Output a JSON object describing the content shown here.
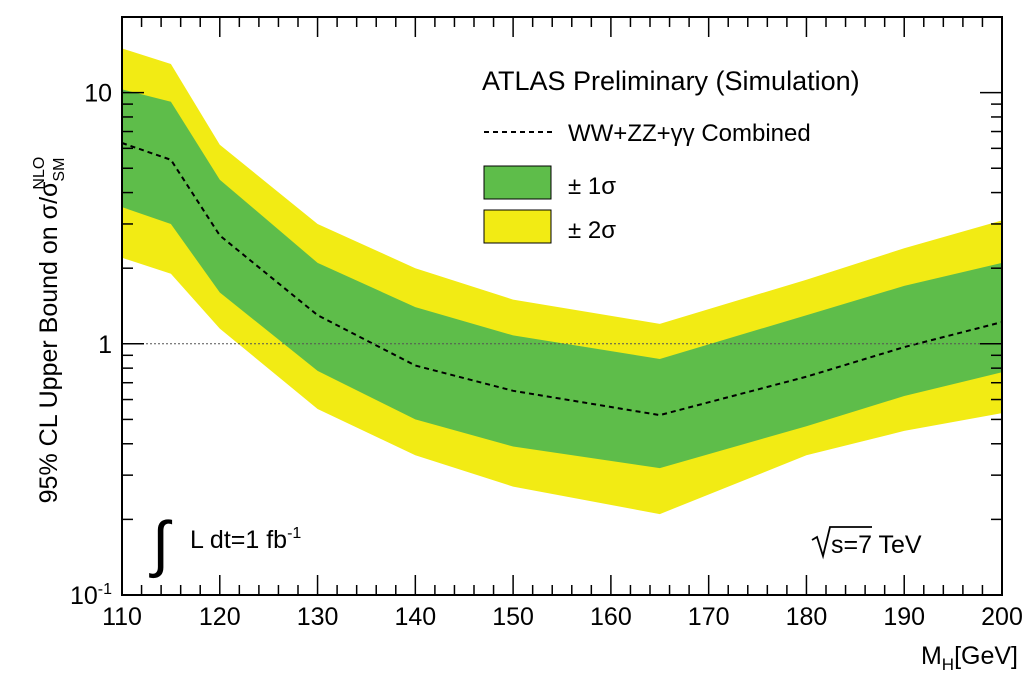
{
  "chart_data": {
    "type": "area",
    "title": "ATLAS Preliminary (Simulation)",
    "ylabel": {
      "main": "95% CL Upper Bound on σ/σ",
      "sub": "SM",
      "sup": "NLO"
    },
    "xlabel": {
      "main": "M",
      "sub": "H",
      "rest": "[GeV]"
    },
    "xlim": [
      110,
      200
    ],
    "ylim": [
      0.1,
      20
    ],
    "yscale": "log",
    "grid": false,
    "reference_line": 1,
    "x_ticks": [
      "110",
      "120",
      "130",
      "140",
      "150",
      "160",
      "170",
      "180",
      "190",
      "200"
    ],
    "y_ticks": [
      {
        "value": 10,
        "label": "10",
        "sup": ""
      },
      {
        "value": 1,
        "label": "1",
        "sup": ""
      },
      {
        "value": 0.1,
        "label": "10",
        "sup": "-1"
      }
    ],
    "x": [
      110,
      115,
      120,
      130,
      140,
      150,
      165,
      180,
      190,
      200
    ],
    "series": [
      {
        "name": "WW+ZZ+γγ Combined",
        "role": "expected",
        "values": [
          6.3,
          5.4,
          2.7,
          1.3,
          0.82,
          0.65,
          0.52,
          0.74,
          0.97,
          1.22
        ]
      },
      {
        "name": "± 1σ",
        "role": "band",
        "lower": [
          3.5,
          3.0,
          1.6,
          0.78,
          0.5,
          0.39,
          0.32,
          0.47,
          0.62,
          0.77
        ],
        "upper": [
          10.3,
          9.2,
          4.5,
          2.1,
          1.4,
          1.08,
          0.87,
          1.3,
          1.7,
          2.1
        ],
        "color": "#5ebd4a"
      },
      {
        "name": "± 2σ",
        "role": "band",
        "lower": [
          2.2,
          1.9,
          1.15,
          0.55,
          0.36,
          0.27,
          0.21,
          0.36,
          0.45,
          0.53
        ],
        "upper": [
          15.0,
          13.0,
          6.2,
          3.0,
          2.0,
          1.5,
          1.2,
          1.8,
          2.4,
          3.1
        ],
        "color": "#f2eb14"
      }
    ],
    "legend": {
      "placement": "top-right",
      "entries": [
        "WW+ZZ+γγ Combined",
        "± 1σ",
        "± 2σ"
      ]
    },
    "annotations": {
      "luminosity": {
        "text": "L dt=1 fb",
        "sup": "-1"
      },
      "energy": {
        "text": "s=7 TeV"
      }
    }
  }
}
